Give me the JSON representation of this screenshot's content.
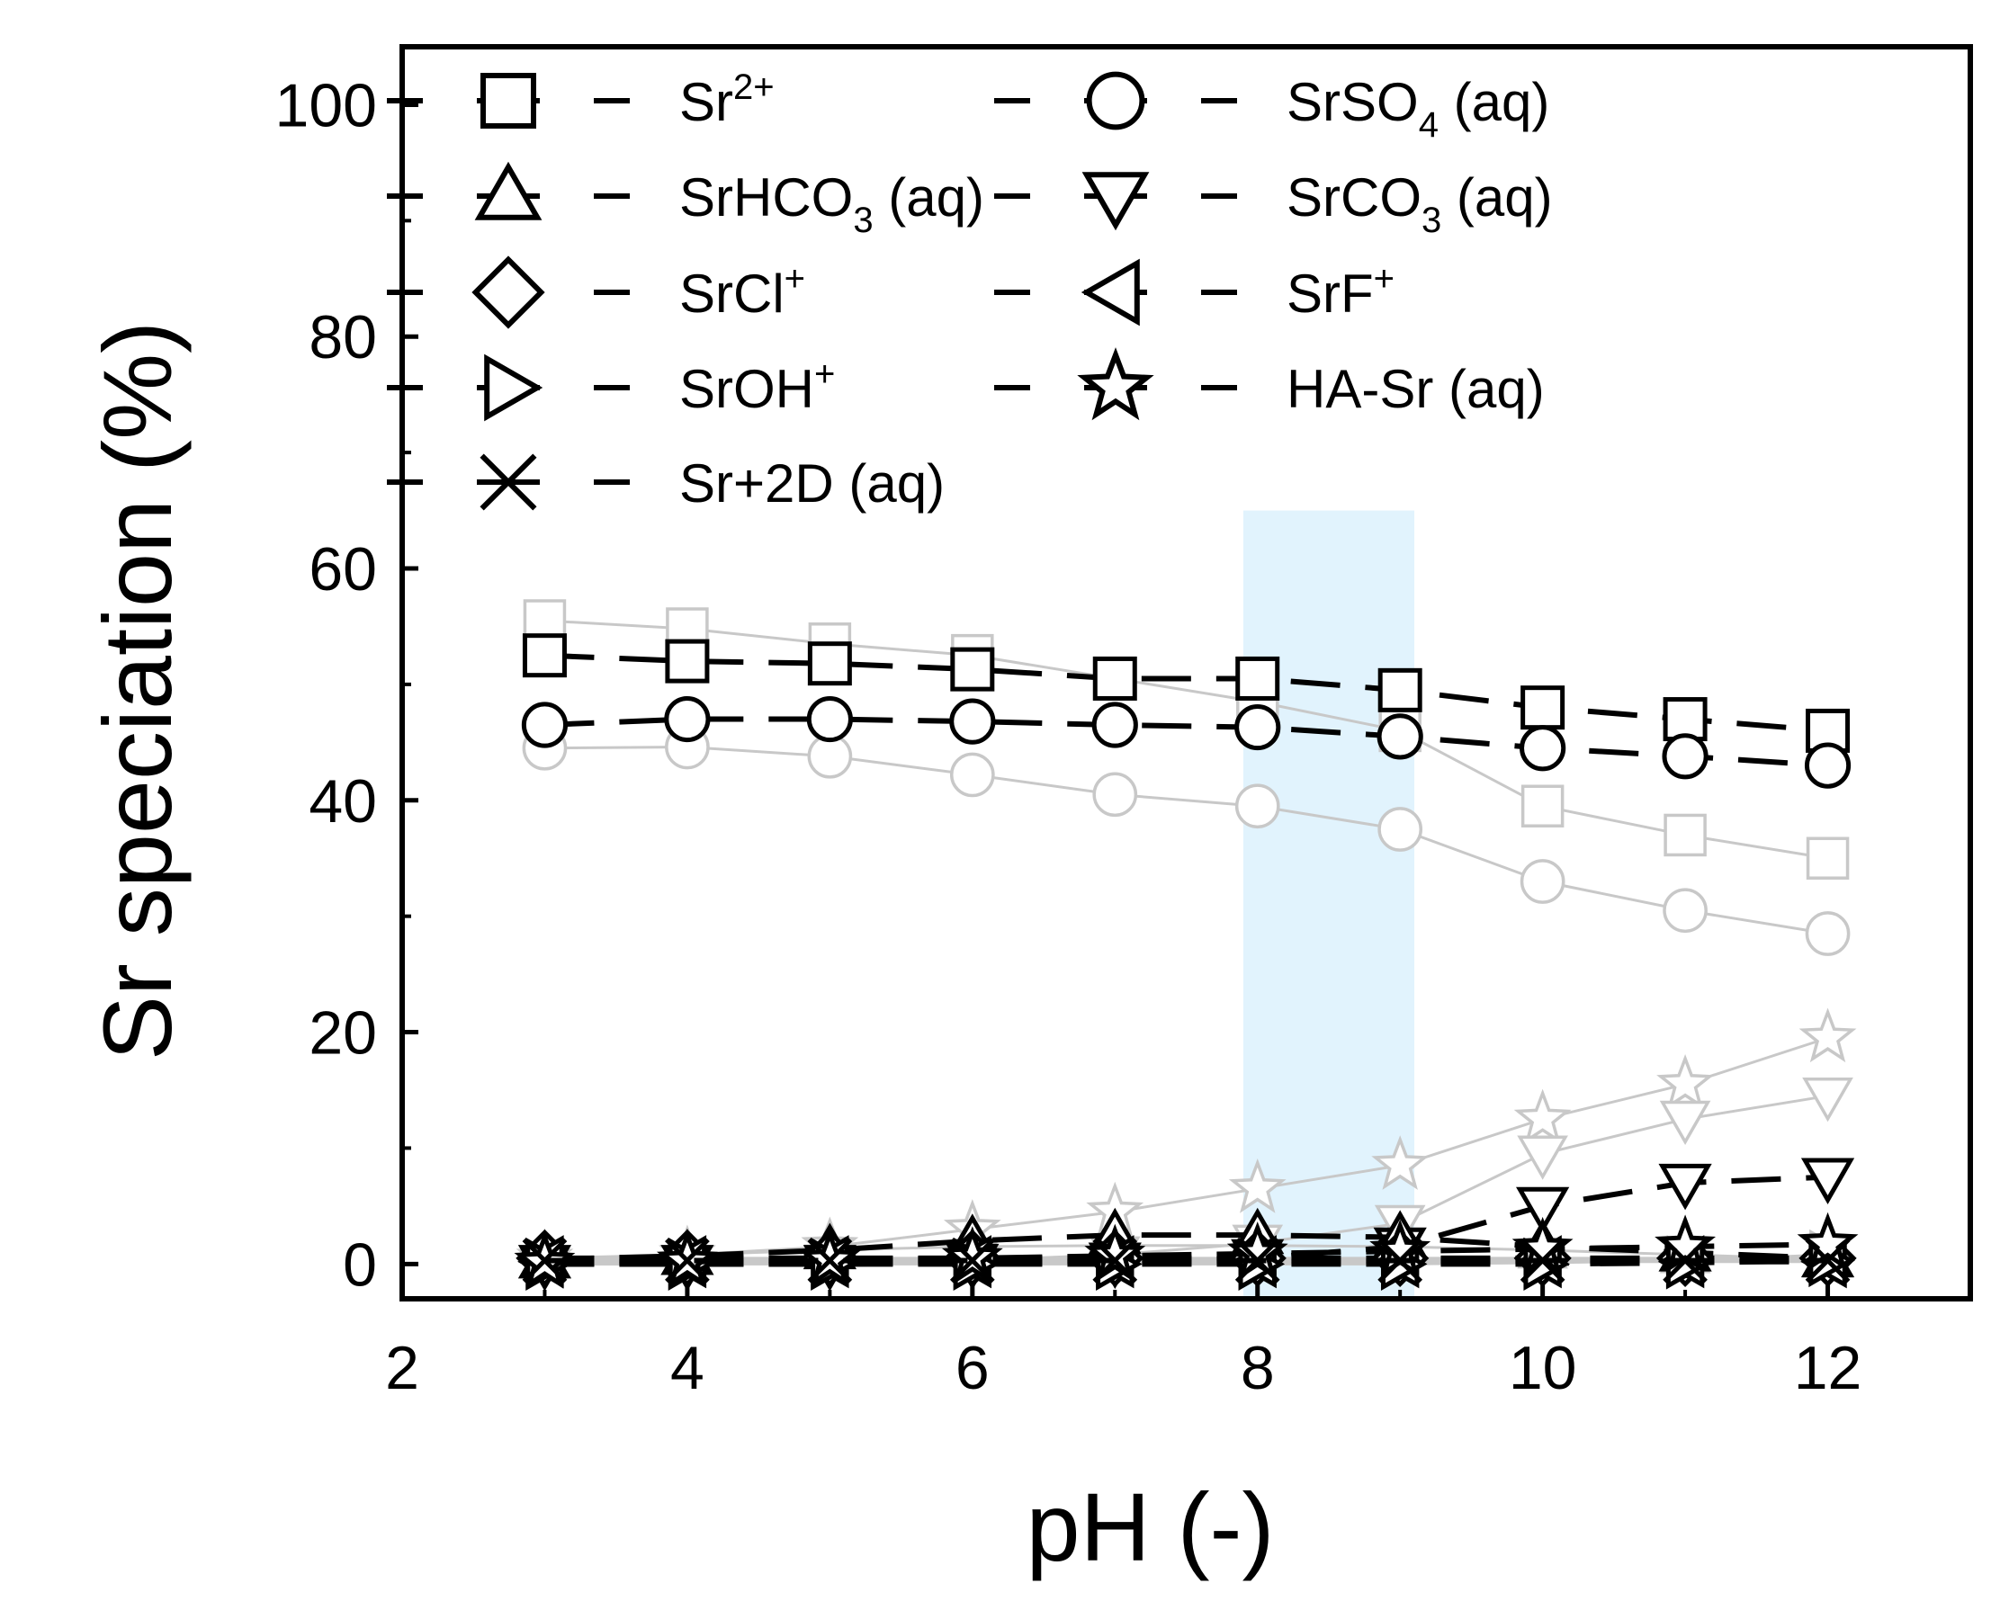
{
  "chart_data": {
    "type": "line",
    "title": "",
    "xlabel": "pH (-)",
    "ylabel": "Sr speciation (%)",
    "xlim": [
      2,
      13
    ],
    "ylim": [
      -3,
      105
    ],
    "xticks": [
      2,
      4,
      6,
      8,
      10,
      12
    ],
    "yticks": [
      0,
      20,
      40,
      60,
      80,
      100
    ],
    "highlight_band": {
      "x_from": 7.9,
      "x_to": 9.1,
      "y_from": -3,
      "y_to": 65,
      "color": "#e1f3fd"
    },
    "x": [
      3,
      4,
      5,
      6,
      7,
      8,
      9,
      10,
      11,
      12
    ],
    "legend": [
      {
        "marker": "square",
        "name": "Sr",
        "sup": "2+",
        "sub": "",
        "suffix": ""
      },
      {
        "marker": "circle",
        "name": "SrSO",
        "sup": "",
        "sub": "4",
        "suffix": " (aq)"
      },
      {
        "marker": "triangle-up",
        "name": "SrHCO",
        "sup": "",
        "sub": "3",
        "suffix": " (aq)"
      },
      {
        "marker": "triangle-down",
        "name": "SrCO",
        "sup": "",
        "sub": "3",
        "suffix": " (aq)"
      },
      {
        "marker": "diamond",
        "name": "SrCl",
        "sup": "+",
        "sub": "",
        "suffix": ""
      },
      {
        "marker": "triangle-left",
        "name": "SrF",
        "sup": "+",
        "sub": "",
        "suffix": ""
      },
      {
        "marker": "triangle-right",
        "name": "SrOH",
        "sup": "+",
        "sub": "",
        "suffix": ""
      },
      {
        "marker": "star",
        "name": "HA-Sr (aq)",
        "sup": "",
        "sub": "",
        "suffix": ""
      },
      {
        "marker": "x",
        "name": "Sr+2D (aq)",
        "sup": "",
        "sub": "",
        "suffix": ""
      }
    ],
    "series": [
      {
        "name": "Sr2+ (gray)",
        "marker": "square",
        "color": "#c8c8c8",
        "values": [
          55.5,
          54.8,
          53.5,
          52.5,
          50.5,
          48.5,
          46,
          39.5,
          37,
          35
        ]
      },
      {
        "name": "SrSO4 (aq) (gray)",
        "marker": "circle",
        "color": "#c8c8c8",
        "values": [
          44.5,
          44.6,
          43.8,
          42.2,
          40.5,
          39.5,
          37.5,
          33,
          30.5,
          28.5
        ]
      },
      {
        "name": "HA-Sr (aq) (gray)",
        "marker": "star",
        "color": "#c8c8c8",
        "values": [
          0.5,
          0.8,
          1.5,
          3,
          4.5,
          6.5,
          8.5,
          12.5,
          15.5,
          19.5
        ]
      },
      {
        "name": "SrCO3 (aq) (gray)",
        "marker": "triangle-down",
        "color": "#c8c8c8",
        "values": [
          0,
          0,
          0.1,
          0.3,
          0.8,
          1.8,
          3.5,
          9.5,
          12.5,
          14.5
        ]
      },
      {
        "name": "SrHCO3 (aq) (gray)",
        "marker": "triangle-up",
        "color": "#c8c8c8",
        "values": [
          0.4,
          0.8,
          1.2,
          1.5,
          1.6,
          1.6,
          1.5,
          1.2,
          0.8,
          0.4
        ]
      },
      {
        "name": "SrCl+ (gray)",
        "marker": "diamond",
        "color": "#c8c8c8",
        "values": [
          0.5,
          0.5,
          0.5,
          0.5,
          0.5,
          0.5,
          0.5,
          0.5,
          0.5,
          0.5
        ]
      },
      {
        "name": "SrF+ (gray)",
        "marker": "triangle-left",
        "color": "#c8c8c8",
        "values": [
          0.2,
          0.2,
          0.2,
          0.2,
          0.2,
          0.2,
          0.2,
          0.2,
          0.2,
          0.2
        ]
      },
      {
        "name": "SrOH+ (gray)",
        "marker": "triangle-right",
        "color": "#c8c8c8",
        "values": [
          0,
          0,
          0,
          0,
          0,
          0,
          0,
          0.1,
          0.3,
          0.8
        ]
      },
      {
        "name": "Sr+2D (aq) (gray)",
        "marker": "x",
        "color": "#c8c8c8",
        "values": [
          0.3,
          0.3,
          0.3,
          0.3,
          0.3,
          0.3,
          0.3,
          0.3,
          0.3,
          0.3
        ]
      },
      {
        "name": "Sr2+",
        "marker": "square",
        "color": "#000000",
        "values": [
          52.5,
          52,
          51.8,
          51.3,
          50.5,
          50.5,
          49.5,
          48,
          47,
          46
        ]
      },
      {
        "name": "SrSO4 (aq)",
        "marker": "circle",
        "color": "#000000",
        "values": [
          46.5,
          47,
          47,
          46.8,
          46.5,
          46.3,
          45.5,
          44.5,
          43.8,
          43
        ]
      },
      {
        "name": "SrCO3 (aq)",
        "marker": "triangle-down",
        "color": "#000000",
        "values": [
          0,
          0,
          0,
          0.1,
          0.2,
          0.5,
          1.5,
          5,
          7,
          7.5
        ]
      },
      {
        "name": "SrHCO3 (aq)",
        "marker": "triangle-up",
        "color": "#000000",
        "values": [
          0.4,
          0.7,
          1.2,
          2,
          2.5,
          2.5,
          2.3,
          1.5,
          1,
          0.5
        ]
      },
      {
        "name": "SrCl+",
        "marker": "diamond",
        "color": "#000000",
        "values": [
          0.5,
          0.5,
          0.5,
          0.5,
          0.5,
          0.5,
          0.5,
          0.5,
          0.5,
          0.5
        ]
      },
      {
        "name": "SrF+",
        "marker": "triangle-left",
        "color": "#000000",
        "values": [
          0.2,
          0.2,
          0.2,
          0.2,
          0.2,
          0.2,
          0.2,
          0.2,
          0.2,
          0.2
        ]
      },
      {
        "name": "SrOH+",
        "marker": "triangle-right",
        "color": "#000000",
        "values": [
          0,
          0,
          0,
          0,
          0,
          0,
          0,
          0,
          0.1,
          0.3
        ]
      },
      {
        "name": "HA-Sr (aq)",
        "marker": "star",
        "color": "#000000",
        "values": [
          0.1,
          0.2,
          0.3,
          0.5,
          0.7,
          0.9,
          1.1,
          1.3,
          1.5,
          1.7
        ]
      },
      {
        "name": "Sr+2D (aq)",
        "marker": "x",
        "color": "#000000",
        "values": [
          0.3,
          0.3,
          0.3,
          0.3,
          0.3,
          0.3,
          0.3,
          0.3,
          0.3,
          0.3
        ]
      }
    ]
  }
}
